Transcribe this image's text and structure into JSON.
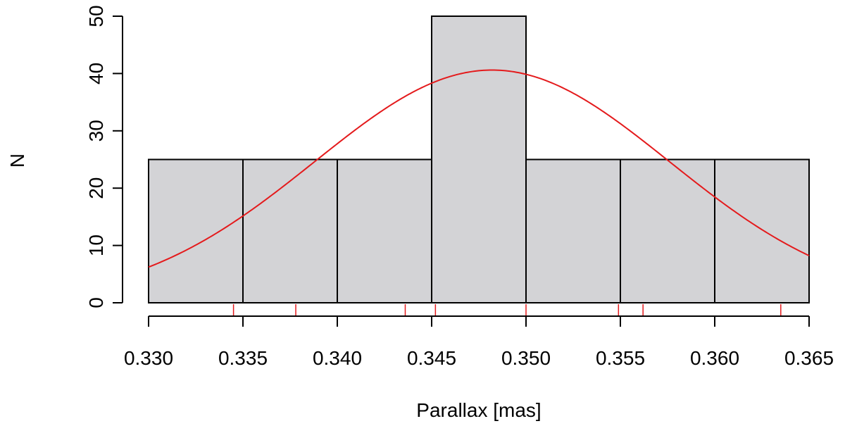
{
  "chart_data": {
    "type": "bar",
    "subtype": "histogram",
    "xlabel": "Parallax [mas]",
    "ylabel": "N",
    "xlim": [
      0.33,
      0.365
    ],
    "ylim": [
      0,
      50
    ],
    "bins": [
      {
        "start": 0.33,
        "end": 0.335,
        "count": 25
      },
      {
        "start": 0.335,
        "end": 0.34,
        "count": 25
      },
      {
        "start": 0.34,
        "end": 0.345,
        "count": 25
      },
      {
        "start": 0.345,
        "end": 0.35,
        "count": 50
      },
      {
        "start": 0.35,
        "end": 0.355,
        "count": 25
      },
      {
        "start": 0.355,
        "end": 0.36,
        "count": 25
      },
      {
        "start": 0.36,
        "end": 0.365,
        "count": 25
      }
    ],
    "x_ticks": [
      "0.330",
      "0.335",
      "0.340",
      "0.345",
      "0.350",
      "0.355",
      "0.360",
      "0.365"
    ],
    "y_ticks": [
      "0",
      "10",
      "20",
      "30",
      "40",
      "50"
    ],
    "fit_curve": {
      "type": "normal",
      "mean": 0.3482,
      "sd": 0.0094,
      "peak": 40.6,
      "color": "#e41a1c"
    },
    "rug": [
      0.3345,
      0.3378,
      0.3436,
      0.3452,
      0.35,
      0.3549,
      0.3562,
      0.3635
    ],
    "bar_fill": "#d3d3d6",
    "grid": false
  }
}
